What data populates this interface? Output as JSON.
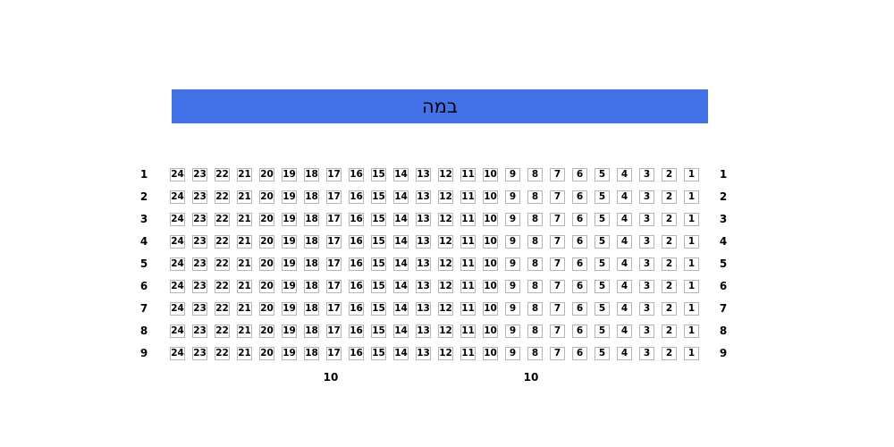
{
  "stage": {
    "label": "במה",
    "background_color": "#4372e8",
    "text_color": "#000000"
  },
  "seating": {
    "row_labels_left": [
      "1",
      "2",
      "3",
      "4",
      "5",
      "6",
      "7",
      "8",
      "9"
    ],
    "row_labels_right": [
      "1",
      "2",
      "3",
      "4",
      "5",
      "6",
      "7",
      "8",
      "9"
    ],
    "seat_labels": [
      "24",
      "23",
      "22",
      "21",
      "20",
      "19",
      "18",
      "17",
      "16",
      "15",
      "14",
      "13",
      "12",
      "11",
      "10",
      "9",
      "8",
      "7",
      "6",
      "5",
      "4",
      "3",
      "2",
      "1"
    ],
    "footer_row_labels": [
      "10",
      "10"
    ],
    "seat_border_color": "#b5b5b5",
    "seat_background_color": "#ffffff"
  }
}
